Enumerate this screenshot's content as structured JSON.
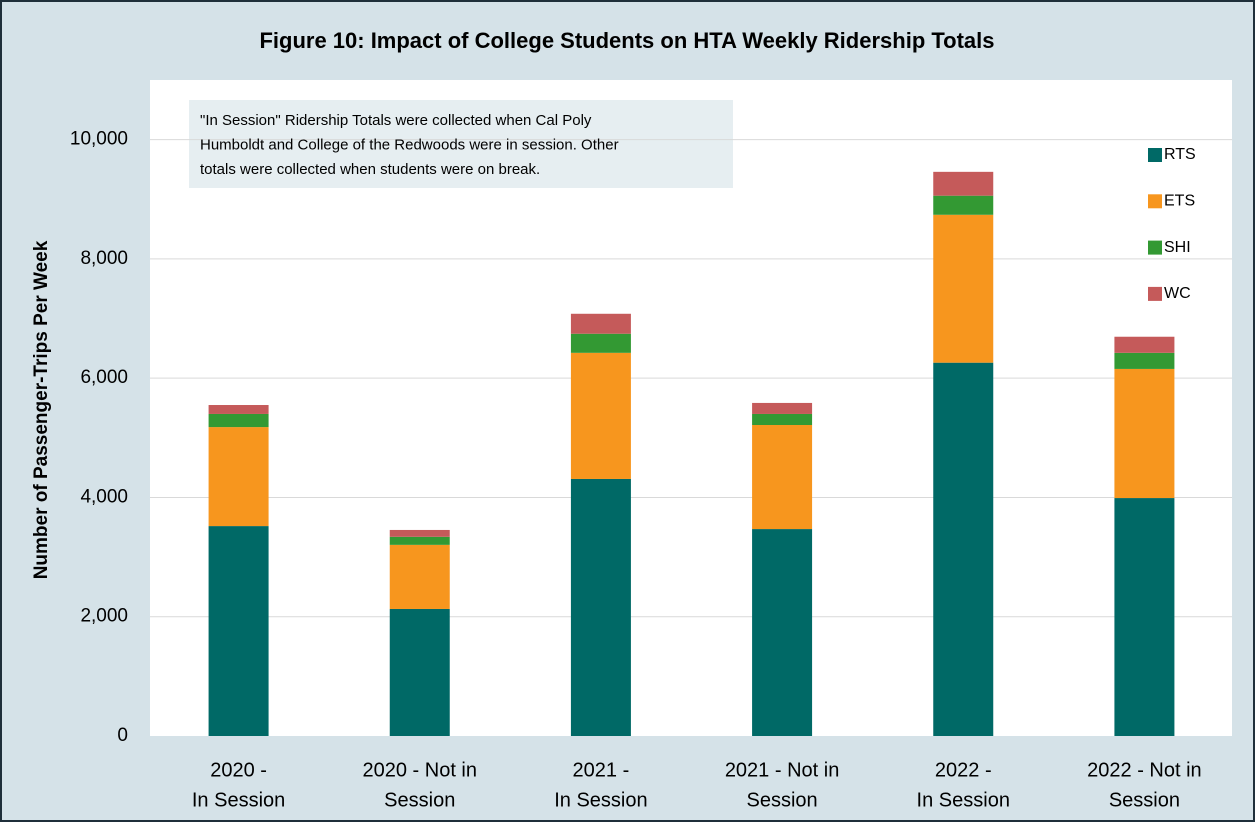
{
  "chart_data": {
    "type": "stacked_bar",
    "title": "Figure 10: Impact of College Students on HTA Weekly Ridership Totals",
    "y_label": "Number of Passenger-Trips Per Week",
    "annotation": [
      "\"In Session\" Ridership Totals were collected when Cal Poly",
      "Humboldt and College of the Redwoods were in session. Other",
      "totals were collected when students were on break."
    ],
    "categories": [
      [
        "2020 -",
        "In Session"
      ],
      [
        "2020 - Not in",
        "Session"
      ],
      [
        "2021 -",
        "In Session"
      ],
      [
        "2021 - Not in",
        "Session"
      ],
      [
        "2022 -",
        "In Session"
      ],
      [
        "2022 - Not in",
        "Session"
      ]
    ],
    "series": [
      {
        "name": "RTS",
        "color": "#006966",
        "values": [
          3520,
          2130,
          4310,
          3470,
          6260,
          3990
        ]
      },
      {
        "name": "ETS",
        "color": "#f7961e",
        "values": [
          1660,
          1075,
          2115,
          1745,
          2480,
          2165
        ]
      },
      {
        "name": "SHI",
        "color": "#339933",
        "values": [
          220,
          135,
          320,
          185,
          320,
          270
        ]
      },
      {
        "name": "WC",
        "color": "#c55a5a",
        "values": [
          150,
          115,
          335,
          185,
          400,
          270
        ]
      }
    ],
    "ylim": [
      0,
      11000
    ],
    "yticks": [
      0,
      {
        "value": 2000,
        "label": "2,000"
      },
      {
        "value": 4000,
        "label": "4,000"
      },
      {
        "value": 6000,
        "label": "6,000"
      },
      {
        "value": 8000,
        "label": "8,000"
      },
      {
        "value": 10000,
        "label": "10,000"
      }
    ],
    "grid": true,
    "legend": "right"
  }
}
